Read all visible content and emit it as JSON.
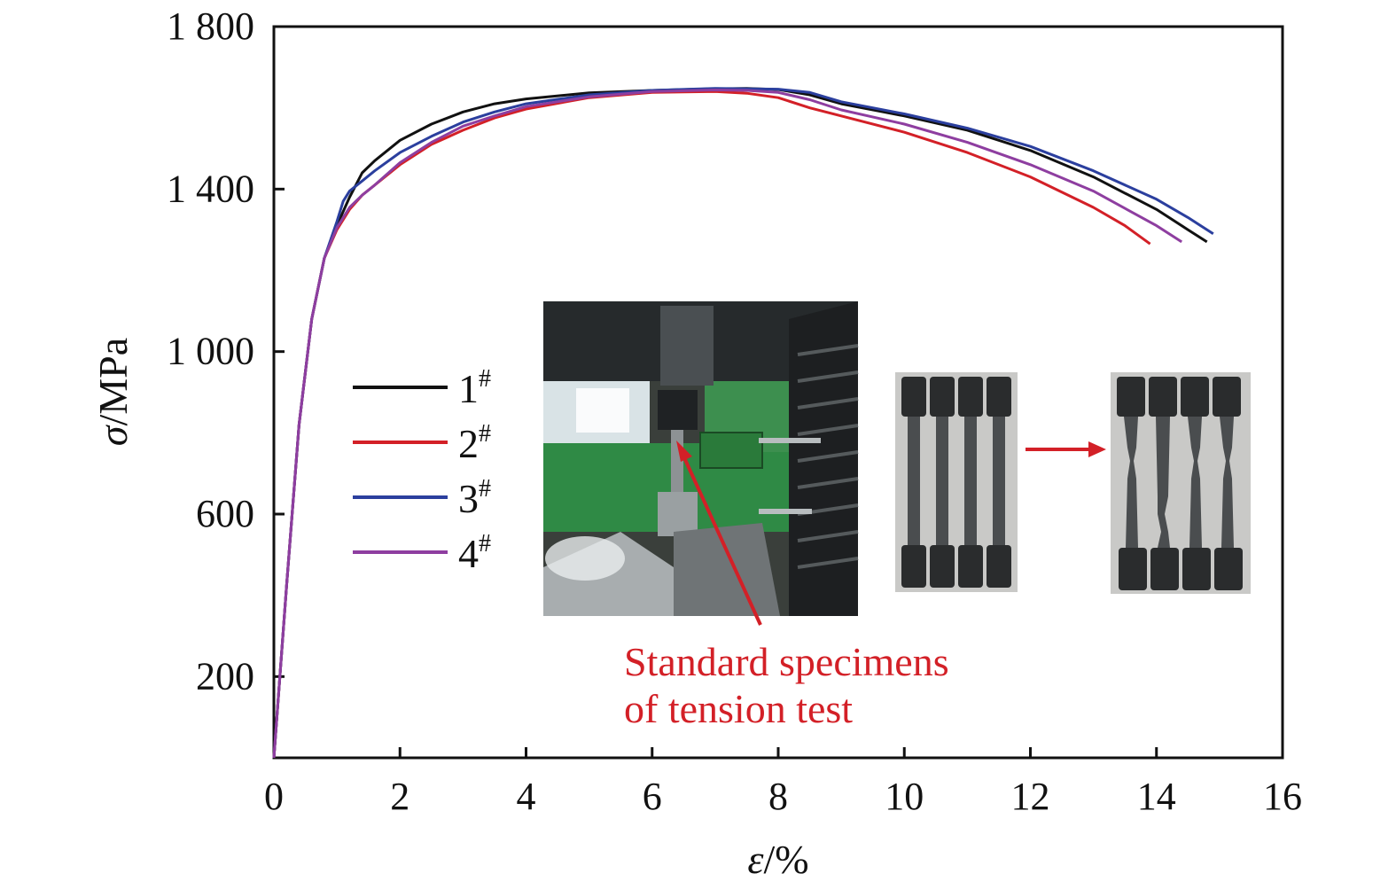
{
  "chart_data": {
    "type": "line",
    "title": "",
    "xlabel": {
      "symbol": "ε",
      "unit": "/%"
    },
    "ylabel": {
      "symbol": "σ",
      "unit": "/MPa"
    },
    "xlim": [
      0,
      16
    ],
    "ylim": [
      0,
      1800
    ],
    "xticks": [
      {
        "value": 0,
        "label": "0"
      },
      {
        "value": 2,
        "label": "2"
      },
      {
        "value": 4,
        "label": "4"
      },
      {
        "value": 6,
        "label": "6"
      },
      {
        "value": 8,
        "label": "8"
      },
      {
        "value": 10,
        "label": "10"
      },
      {
        "value": 12,
        "label": "12"
      },
      {
        "value": 14,
        "label": "14"
      },
      {
        "value": 16,
        "label": "16"
      }
    ],
    "yticks": [
      {
        "value": 200,
        "label": "200"
      },
      {
        "value": 600,
        "label": "600"
      },
      {
        "value": 1000,
        "label": "1 000"
      },
      {
        "value": 1400,
        "label": "1 400"
      },
      {
        "value": 1800,
        "label": "1 800"
      }
    ],
    "grid": false,
    "legend_position": "center-left",
    "series": [
      {
        "name": "1",
        "superscript": "#",
        "color": "#111111",
        "points": [
          [
            0,
            0
          ],
          [
            0.2,
            420
          ],
          [
            0.4,
            820
          ],
          [
            0.6,
            1080
          ],
          [
            0.8,
            1230
          ],
          [
            1.0,
            1310
          ],
          [
            1.2,
            1380
          ],
          [
            1.3,
            1410
          ],
          [
            1.4,
            1440
          ],
          [
            1.6,
            1470
          ],
          [
            2.0,
            1520
          ],
          [
            2.5,
            1560
          ],
          [
            3.0,
            1590
          ],
          [
            3.5,
            1610
          ],
          [
            4.0,
            1622
          ],
          [
            5.0,
            1637
          ],
          [
            6.0,
            1643
          ],
          [
            7.0,
            1647
          ],
          [
            7.5,
            1648
          ],
          [
            8.0,
            1645
          ],
          [
            8.5,
            1632
          ],
          [
            9.0,
            1610
          ],
          [
            10.0,
            1580
          ],
          [
            11.0,
            1545
          ],
          [
            12.0,
            1495
          ],
          [
            13.0,
            1430
          ],
          [
            14.0,
            1350
          ],
          [
            14.5,
            1300
          ],
          [
            14.8,
            1270
          ]
        ]
      },
      {
        "name": "2",
        "superscript": "#",
        "color": "#d32027",
        "points": [
          [
            0,
            0
          ],
          [
            0.2,
            420
          ],
          [
            0.4,
            820
          ],
          [
            0.6,
            1080
          ],
          [
            0.8,
            1230
          ],
          [
            1.0,
            1300
          ],
          [
            1.2,
            1350
          ],
          [
            1.4,
            1385
          ],
          [
            1.6,
            1410
          ],
          [
            2.0,
            1460
          ],
          [
            2.5,
            1510
          ],
          [
            3.0,
            1545
          ],
          [
            3.5,
            1575
          ],
          [
            4.0,
            1597
          ],
          [
            5.0,
            1625
          ],
          [
            6.0,
            1638
          ],
          [
            7.0,
            1640
          ],
          [
            7.5,
            1636
          ],
          [
            8.0,
            1625
          ],
          [
            8.5,
            1600
          ],
          [
            9.0,
            1580
          ],
          [
            10.0,
            1540
          ],
          [
            11.0,
            1490
          ],
          [
            12.0,
            1430
          ],
          [
            13.0,
            1355
          ],
          [
            13.5,
            1310
          ],
          [
            13.9,
            1265
          ]
        ]
      },
      {
        "name": "3",
        "superscript": "#",
        "color": "#2b3f9e",
        "points": [
          [
            0,
            0
          ],
          [
            0.2,
            420
          ],
          [
            0.4,
            820
          ],
          [
            0.6,
            1080
          ],
          [
            0.8,
            1230
          ],
          [
            1.0,
            1320
          ],
          [
            1.1,
            1370
          ],
          [
            1.2,
            1395
          ],
          [
            1.4,
            1420
          ],
          [
            1.6,
            1445
          ],
          [
            2.0,
            1490
          ],
          [
            2.5,
            1530
          ],
          [
            3.0,
            1565
          ],
          [
            3.5,
            1590
          ],
          [
            4.0,
            1610
          ],
          [
            5.0,
            1632
          ],
          [
            6.0,
            1643
          ],
          [
            7.0,
            1648
          ],
          [
            8.0,
            1646
          ],
          [
            8.5,
            1638
          ],
          [
            9.0,
            1615
          ],
          [
            10.0,
            1585
          ],
          [
            11.0,
            1550
          ],
          [
            12.0,
            1505
          ],
          [
            13.0,
            1445
          ],
          [
            14.0,
            1375
          ],
          [
            14.5,
            1330
          ],
          [
            14.9,
            1290
          ]
        ]
      },
      {
        "name": "4",
        "superscript": "#",
        "color": "#8e3ea0",
        "points": [
          [
            0,
            0
          ],
          [
            0.2,
            420
          ],
          [
            0.4,
            820
          ],
          [
            0.6,
            1080
          ],
          [
            0.8,
            1230
          ],
          [
            1.0,
            1305
          ],
          [
            1.2,
            1355
          ],
          [
            1.4,
            1385
          ],
          [
            1.6,
            1410
          ],
          [
            2.0,
            1465
          ],
          [
            2.5,
            1515
          ],
          [
            3.0,
            1555
          ],
          [
            3.5,
            1580
          ],
          [
            4.0,
            1603
          ],
          [
            5.0,
            1627
          ],
          [
            6.0,
            1640
          ],
          [
            7.0,
            1644
          ],
          [
            7.5,
            1643
          ],
          [
            8.0,
            1638
          ],
          [
            8.5,
            1620
          ],
          [
            9.0,
            1595
          ],
          [
            10.0,
            1560
          ],
          [
            11.0,
            1515
          ],
          [
            12.0,
            1460
          ],
          [
            13.0,
            1395
          ],
          [
            14.0,
            1310
          ],
          [
            14.4,
            1270
          ]
        ]
      }
    ],
    "annotation": {
      "lines": [
        "Standard specimens",
        "of tension test"
      ],
      "color": "#d32027"
    },
    "photos": [
      {
        "description_id": "tensile-machine-photo"
      },
      {
        "description_id": "specimens-before-photo"
      },
      {
        "description_id": "specimens-after-photo"
      }
    ],
    "arrow_color": "#d32027"
  }
}
